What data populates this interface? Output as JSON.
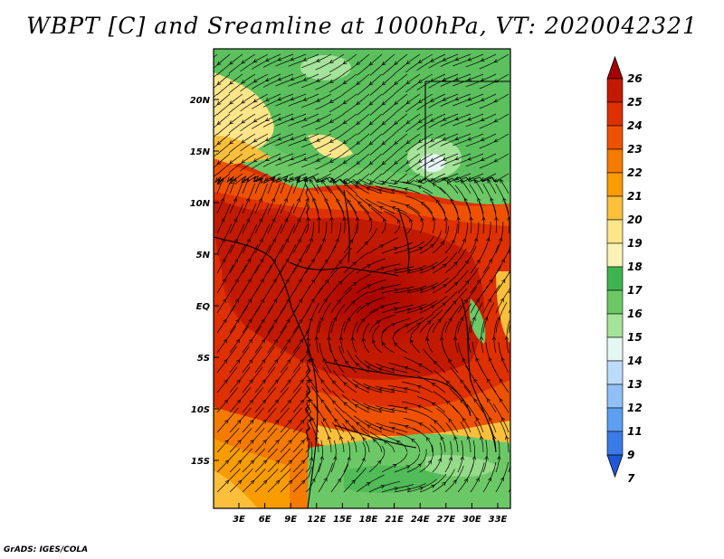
{
  "title": "WBPT [C] and Sreamline at 1000hPa, VT: 2020042321",
  "footer": "GrADS: IGES/COLA",
  "lat_labels": [
    "20N",
    "15N",
    "10N",
    "5N",
    "EQ",
    "5S",
    "10S",
    "15S"
  ],
  "lon_labels": [
    "3E",
    "6E",
    "9E",
    "12E",
    "15E",
    "18E",
    "21E",
    "24E",
    "27E",
    "30E",
    "33E"
  ],
  "colorbar": {
    "levels": [
      "26",
      "25",
      "24",
      "23",
      "22",
      "21",
      "20",
      "19",
      "18",
      "17",
      "16",
      "15",
      "14",
      "13",
      "12",
      "11",
      "9",
      "7"
    ],
    "colors": [
      "#a50000",
      "#c21a00",
      "#de3000",
      "#ee5200",
      "#f47a00",
      "#f99c00",
      "#fbbf3c",
      "#fde58a",
      "#f8f3b5",
      "#3fb34f",
      "#6cc866",
      "#a6e39a",
      "#e6f7f3",
      "#bcdcfb",
      "#8fc1f7",
      "#5d9ff0",
      "#3b7be8",
      "#2057d9"
    ]
  }
}
